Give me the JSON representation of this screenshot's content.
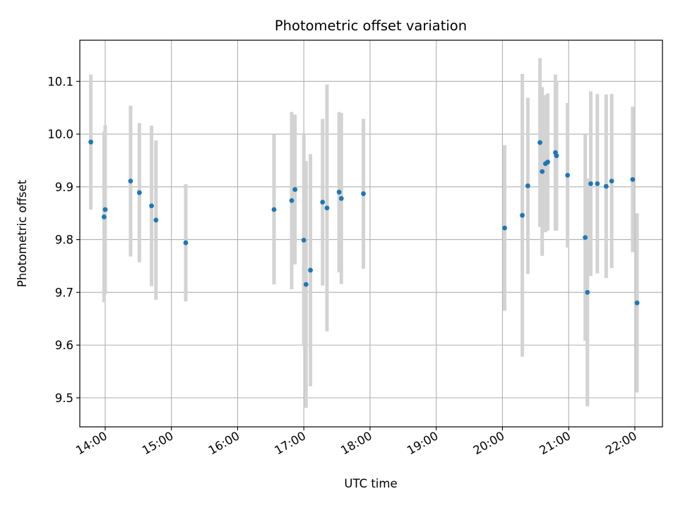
{
  "chart_data": {
    "type": "scatter",
    "title": "Photometric offset variation",
    "xlabel": "UTC time",
    "ylabel": "Photometric offset",
    "grid": true,
    "legend": "none",
    "xlim": [
      "13:37",
      "22:25"
    ],
    "ylim": [
      9.445,
      10.178
    ],
    "x_ticks": [
      "14:00",
      "15:00",
      "16:00",
      "17:00",
      "18:00",
      "19:00",
      "20:00",
      "21:00",
      "22:00"
    ],
    "y_ticks": [
      "9.5",
      "9.6",
      "9.7",
      "9.8",
      "9.9",
      "10.0",
      "10.1"
    ],
    "colors": {
      "point": "#1f77b4",
      "errorbar": "#d3d3d3",
      "grid": "#b0b0b0"
    },
    "points": [
      {
        "time": "13:47",
        "y": 9.985,
        "yerr": 0.128
      },
      {
        "time": "13:59",
        "y": 9.843,
        "yerr": 0.162
      },
      {
        "time": "14:00",
        "y": 9.857,
        "yerr": 0.16
      },
      {
        "time": "14:23",
        "y": 9.911,
        "yerr": 0.143
      },
      {
        "time": "14:31",
        "y": 9.889,
        "yerr": 0.132
      },
      {
        "time": "14:42",
        "y": 9.864,
        "yerr": 0.152
      },
      {
        "time": "14:46",
        "y": 9.837,
        "yerr": 0.151
      },
      {
        "time": "15:13",
        "y": 9.794,
        "yerr": 0.111
      },
      {
        "time": "16:33",
        "y": 9.857,
        "yerr": 0.142
      },
      {
        "time": "16:49",
        "y": 9.874,
        "yerr": 0.168
      },
      {
        "time": "16:52",
        "y": 9.895,
        "yerr": 0.142
      },
      {
        "time": "17:00",
        "y": 9.799,
        "yerr": 0.201
      },
      {
        "time": "17:02",
        "y": 9.715,
        "yerr": 0.234
      },
      {
        "time": "17:06",
        "y": 9.742,
        "yerr": 0.22
      },
      {
        "time": "17:17",
        "y": 9.871,
        "yerr": 0.158
      },
      {
        "time": "17:21",
        "y": 9.86,
        "yerr": 0.234
      },
      {
        "time": "17:32",
        "y": 9.89,
        "yerr": 0.152
      },
      {
        "time": "17:34",
        "y": 9.878,
        "yerr": 0.162
      },
      {
        "time": "17:54",
        "y": 9.887,
        "yerr": 0.142
      },
      {
        "time": "20:02",
        "y": 9.822,
        "yerr": 0.157
      },
      {
        "time": "20:18",
        "y": 9.846,
        "yerr": 0.268
      },
      {
        "time": "20:23",
        "y": 9.902,
        "yerr": 0.167
      },
      {
        "time": "20:34",
        "y": 9.984,
        "yerr": 0.16
      },
      {
        "time": "20:36",
        "y": 9.929,
        "yerr": 0.16
      },
      {
        "time": "20:39",
        "y": 9.944,
        "yerr": 0.13
      },
      {
        "time": "20:41",
        "y": 9.947,
        "yerr": 0.13
      },
      {
        "time": "20:48",
        "y": 9.965,
        "yerr": 0.148
      },
      {
        "time": "20:49",
        "y": 9.959,
        "yerr": 0.142
      },
      {
        "time": "20:59",
        "y": 9.922,
        "yerr": 0.137
      },
      {
        "time": "21:15",
        "y": 9.804,
        "yerr": 0.196
      },
      {
        "time": "21:17",
        "y": 9.7,
        "yerr": 0.216
      },
      {
        "time": "21:20",
        "y": 9.906,
        "yerr": 0.175
      },
      {
        "time": "21:26",
        "y": 9.906,
        "yerr": 0.17
      },
      {
        "time": "21:34",
        "y": 9.901,
        "yerr": 0.174
      },
      {
        "time": "21:39",
        "y": 9.911,
        "yerr": 0.165
      },
      {
        "time": "21:58",
        "y": 9.914,
        "yerr": 0.138
      },
      {
        "time": "22:02",
        "y": 9.68,
        "yerr": 0.17
      }
    ]
  }
}
